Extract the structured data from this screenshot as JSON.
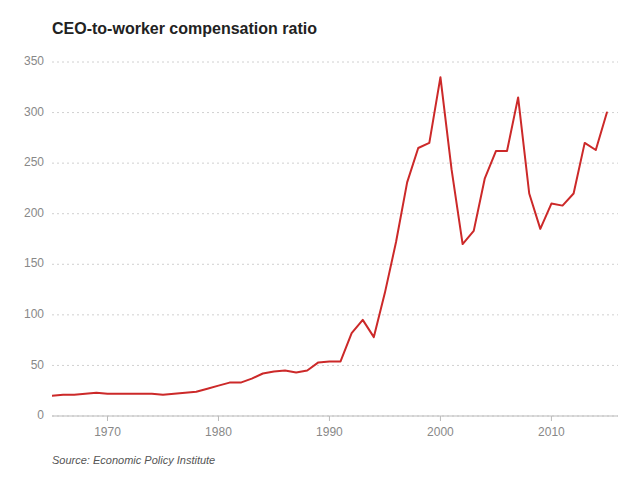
{
  "chart_data": {
    "type": "line",
    "title": "CEO-to-worker compensation ratio",
    "annotation": "Source: Economic Policy Institute",
    "color": "#cc2929",
    "x": [
      1965,
      1966,
      1967,
      1968,
      1969,
      1970,
      1971,
      1972,
      1973,
      1974,
      1975,
      1976,
      1977,
      1978,
      1979,
      1980,
      1981,
      1982,
      1983,
      1984,
      1985,
      1986,
      1987,
      1988,
      1989,
      1990,
      1991,
      1992,
      1993,
      1994,
      1995,
      1996,
      1997,
      1998,
      1999,
      2000,
      2001,
      2002,
      2003,
      2004,
      2005,
      2006,
      2007,
      2008,
      2009,
      2010,
      2011,
      2012,
      2013,
      2014,
      2015
    ],
    "values": [
      20,
      21,
      21,
      22,
      23,
      22,
      22,
      22,
      22,
      22,
      21,
      22,
      23,
      24,
      27,
      30,
      33,
      33,
      37,
      42,
      44,
      45,
      43,
      45,
      53,
      54,
      54,
      82,
      95,
      78,
      122,
      172,
      231,
      265,
      270,
      335,
      244,
      170,
      183,
      235,
      262,
      262,
      315,
      220,
      185,
      210,
      208,
      220,
      270,
      263,
      300
    ],
    "xlim": [
      1965,
      2016
    ],
    "ylim": [
      0,
      350
    ],
    "xticks": [
      1970,
      1980,
      1990,
      2000,
      2010
    ],
    "yticks": [
      0,
      50,
      100,
      150,
      200,
      250,
      300,
      350
    ],
    "grid": true
  }
}
